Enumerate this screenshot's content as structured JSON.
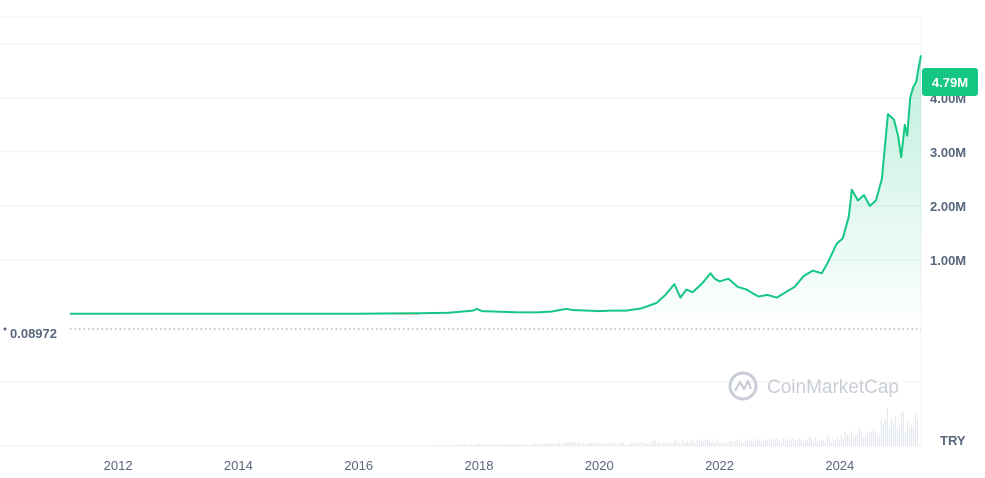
{
  "currency": "TRY",
  "watermark": "CoinMarketCap",
  "current_price_label": "4.79M",
  "start_price_label": "0.08972",
  "colors": {
    "line": "#16c784",
    "area_top": "#16c784",
    "baseline_segment": "#ea3943",
    "grid": "#eff2f5",
    "label_bg": "#16c784",
    "volume": "#e6e9ee"
  },
  "chart_data": {
    "type": "area",
    "title": "",
    "xlabel": "",
    "ylabel": "",
    "currency": "TRY",
    "ylim": [
      -2450000,
      5500000
    ],
    "xlim": [
      2011.2,
      2025.35
    ],
    "x_ticks": [
      {
        "value": 2012,
        "label": "2012"
      },
      {
        "value": 2014,
        "label": "2014"
      },
      {
        "value": 2016,
        "label": "2016"
      },
      {
        "value": 2018,
        "label": "2018"
      },
      {
        "value": 2020,
        "label": "2020"
      },
      {
        "value": 2022,
        "label": "2022"
      },
      {
        "value": 2024,
        "label": "2024"
      }
    ],
    "y_ticks": [
      {
        "value": 1000000,
        "label": "1.00M"
      },
      {
        "value": 2000000,
        "label": "2.00M"
      },
      {
        "value": 3000000,
        "label": "3.00M"
      },
      {
        "value": 4000000,
        "label": "4.00M"
      }
    ],
    "start_price": 0.08972,
    "current_price": 4790000,
    "series": [
      {
        "x": [
          2011.2,
          2012.0,
          2013.0,
          2014.0,
          2015.0,
          2016.0,
          2017.0,
          2017.5,
          2017.9,
          2017.96,
          2018.05,
          2018.3,
          2018.6,
          2018.95,
          2019.2,
          2019.45,
          2019.55,
          2019.8,
          2020.0,
          2020.2,
          2020.45,
          2020.7,
          2020.95,
          2021.1,
          2021.25,
          2021.35,
          2021.45,
          2021.55,
          2021.7,
          2021.85,
          2021.92,
          2022.0,
          2022.15,
          2022.3,
          2022.45,
          2022.55,
          2022.65,
          2022.8,
          2022.95,
          2023.1,
          2023.25,
          2023.4,
          2023.55,
          2023.7,
          2023.8,
          2023.95,
          2024.05,
          2024.15,
          2024.2,
          2024.3,
          2024.4,
          2024.5,
          2024.6,
          2024.7,
          2024.8,
          2024.9,
          2024.97,
          2025.02,
          2025.08,
          2025.12,
          2025.17,
          2025.22,
          2025.27,
          2025.3,
          2025.35
        ],
        "y": [
          0.09,
          1,
          100,
          500,
          1000,
          2000,
          10000,
          20000,
          60000,
          90000,
          50000,
          40000,
          30000,
          25000,
          40000,
          90000,
          70000,
          60000,
          50000,
          60000,
          60000,
          100000,
          200000,
          350000,
          550000,
          300000,
          450000,
          400000,
          550000,
          750000,
          650000,
          600000,
          650000,
          500000,
          450000,
          380000,
          320000,
          350000,
          300000,
          400000,
          500000,
          700000,
          800000,
          750000,
          950000,
          1300000,
          1400000,
          1800000,
          2300000,
          2100000,
          2200000,
          2000000,
          2100000,
          2500000,
          3700000,
          3600000,
          3300000,
          2900000,
          3500000,
          3300000,
          4000000,
          4200000,
          4300000,
          4500000,
          4790000
        ]
      }
    ],
    "volume": {
      "x": [
        2017.0,
        2017.5,
        2018.0,
        2018.5,
        2019.0,
        2019.5,
        2020.0,
        2020.5,
        2021.0,
        2021.5,
        2022.0,
        2022.5,
        2023.0,
        2023.5,
        2024.0,
        2024.3,
        2024.6,
        2024.9,
        2025.1,
        2025.3
      ],
      "y": [
        0.02,
        0.03,
        0.05,
        0.04,
        0.05,
        0.08,
        0.07,
        0.06,
        0.12,
        0.14,
        0.13,
        0.12,
        0.15,
        0.17,
        0.22,
        0.35,
        0.45,
        0.9,
        0.6,
        0.75
      ]
    }
  }
}
